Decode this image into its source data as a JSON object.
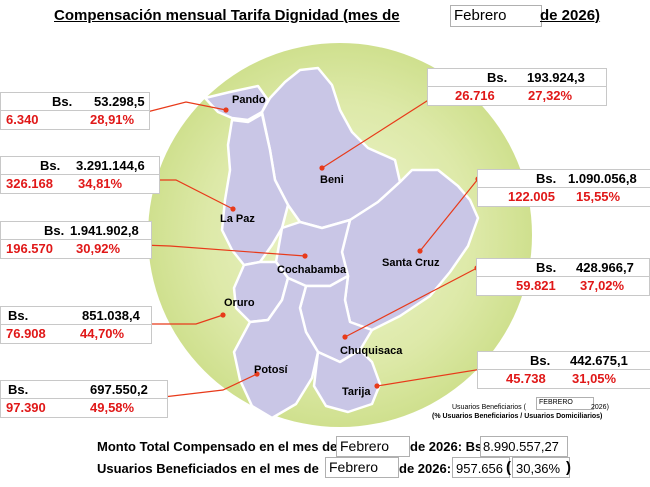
{
  "title": {
    "prefix": "Compensación mensual Tarifa Dignidad (mes de",
    "month": "Febrero",
    "suffix": "de 2026)"
  },
  "departments": {
    "pando": {
      "name": "Pando",
      "currency": "Bs.",
      "amount": "53.298,5",
      "users": "6.340",
      "percent": "28,91%"
    },
    "beni": {
      "name": "Beni",
      "currency": "Bs.",
      "amount": "193.924,3",
      "users": "26.716",
      "percent": "27,32%"
    },
    "la_paz": {
      "name": "La Paz",
      "currency": "Bs.",
      "amount": "3.291.144,6",
      "users": "326.168",
      "percent": "34,81%"
    },
    "santa_cruz": {
      "name": "Santa Cruz",
      "currency": "Bs.",
      "amount": "1.090.056,8",
      "users": "122.005",
      "percent": "15,55%"
    },
    "cochabamba": {
      "name": "Cochabamba",
      "currency": "Bs.",
      "amount": "1.941.902,8",
      "users": "196.570",
      "percent": "30,92%"
    },
    "chuquisaca": {
      "name": "Chuquisaca",
      "currency": "Bs.",
      "amount": "428.966,7",
      "users": "59.821",
      "percent": "37,02%"
    },
    "oruro": {
      "name": "Oruro",
      "currency": "Bs.",
      "amount": "851.038,4",
      "users": "76.908",
      "percent": "44,70%"
    },
    "tarija": {
      "name": "Tarija",
      "currency": "Bs.",
      "amount": "442.675,1",
      "users": "45.738",
      "percent": "31,05%"
    },
    "potosi": {
      "name": "Potosí",
      "currency": "Bs.",
      "amount": "697.550,2",
      "users": "97.390",
      "percent": "49,58%"
    }
  },
  "legend": {
    "line1_prefix": "Usuarios Beneficiarios (",
    "line1_month": "FEBRERO",
    "line1_suffix": "2026)",
    "line2": "(% Usuarios Beneficiarios / Usuarios Domiciliarios)"
  },
  "totals": {
    "amount_label_prefix": "Monto Total Compensado en el mes de",
    "amount_month": "Febrero",
    "amount_label_suffix": "de 2026: Bs",
    "amount_value": "8.990.557,27",
    "users_label_prefix": "Usuarios Beneficiados en el mes de",
    "users_month": "Febrero",
    "users_label_suffix": "de 2026:",
    "users_value": "957.656",
    "users_percent": "30,36%"
  },
  "colors": {
    "circle": "#d9e8a4",
    "map_fill": "#c9c6e6",
    "leader": "#e83a1a",
    "value_red": "#e01818"
  }
}
